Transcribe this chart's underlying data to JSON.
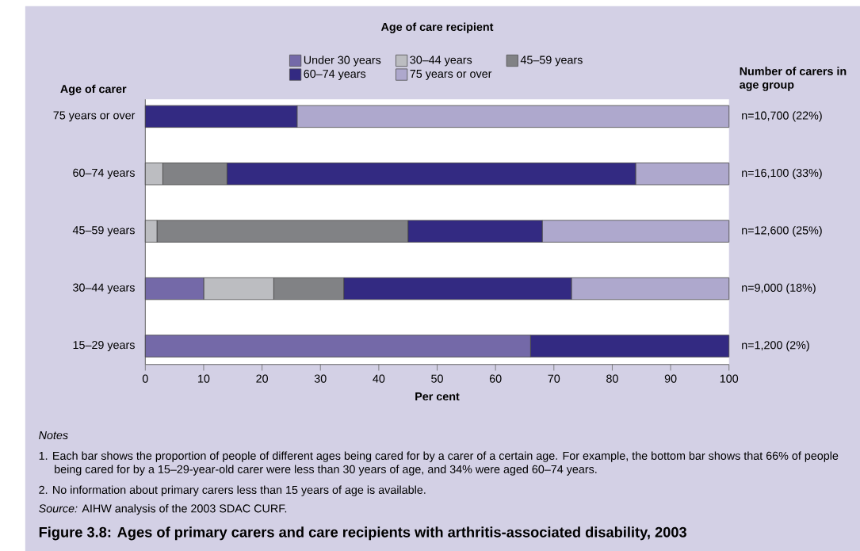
{
  "chart_data": {
    "type": "bar",
    "orientation": "horizontal",
    "stacked": true,
    "title": "Figure 3.8: Ages of primary carers and care recipients with arthritis-associated disability, 2003",
    "ylabel": "Age of carer",
    "xlabel": "Per cent",
    "legend_title": "Age of care recipient",
    "categories": [
      "75 years or over",
      "60–74 years",
      "45–59 years",
      "30–44 years",
      "15–29 years"
    ],
    "series": [
      {
        "name": "Under 30 years",
        "color": "#7469a8",
        "values": [
          0,
          0,
          0,
          10,
          66
        ]
      },
      {
        "name": "30–44 years",
        "color": "#bcbdc1",
        "values": [
          0,
          3,
          2,
          12,
          0
        ]
      },
      {
        "name": "45–59 years",
        "color": "#818285",
        "values": [
          0,
          11,
          43,
          12,
          0
        ]
      },
      {
        "name": "60–74 years",
        "color": "#332a82",
        "values": [
          26,
          70,
          23,
          39,
          34
        ]
      },
      {
        "name": "75 years or over",
        "color": "#aea8cd",
        "values": [
          74,
          16,
          32,
          27,
          0
        ]
      }
    ],
    "totals": [
      "n=10,700 (22%)",
      "n=16,100 (33%)",
      "n=12,600 (25%)",
      "n=9,000 (18%)",
      "n=1,200 (2%)"
    ],
    "xlim": [
      0,
      100
    ],
    "xticks": [
      0,
      10,
      20,
      30,
      40,
      50,
      60,
      70,
      80,
      90,
      100
    ],
    "legend": "top",
    "grid": false,
    "annotations": [
      "Number of carers in age group",
      "*Notes*",
      "1. Each bar shows the proportion of people of different ages being cared for by a carer of a certain age. For example, the bottom bar shows that 66% of people being cared for by a 15–29-year-old carer were less than 30 years of age, and 34% were aged 60–74 years.",
      "2. No information about primary carers less than 15 years of age is available.",
      "*Source:* AIHW analysis of the 2003 SDAC CURF."
    ]
  }
}
